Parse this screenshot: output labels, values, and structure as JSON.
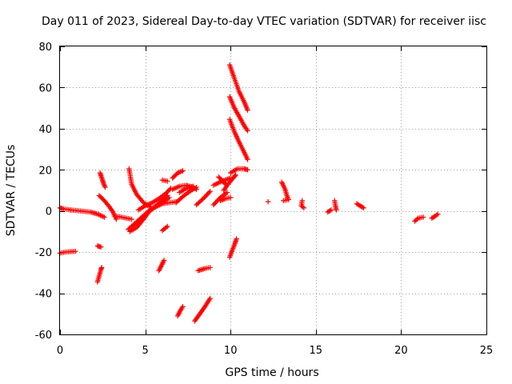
{
  "chart_data": {
    "type": "scatter",
    "title": "Day 011 of 2023, Sidereal Day-to-day VTEC variation (SDTVAR) for receiver iisc",
    "xlabel": "GPS time / hours",
    "ylabel": "SDTVAR / TECUs",
    "xlim": [
      0,
      25
    ],
    "ylim": [
      -60,
      80
    ],
    "xticks": [
      0,
      5,
      10,
      15,
      20,
      25
    ],
    "yticks": [
      -60,
      -40,
      -20,
      0,
      20,
      40,
      60,
      80
    ],
    "grid": true,
    "legend": "none",
    "marker": "plus",
    "color": "#ff0000",
    "tracks": [
      [
        [
          0.0,
          1.5
        ],
        [
          0.2,
          1.0
        ],
        [
          0.4,
          0.8
        ],
        [
          0.6,
          0.5
        ]
      ],
      [
        [
          0.6,
          0.5
        ],
        [
          1.0,
          0.2
        ],
        [
          1.4,
          -0.2
        ],
        [
          1.8,
          -0.5
        ],
        [
          2.2,
          -1.5
        ],
        [
          2.6,
          -3.0
        ]
      ],
      [
        [
          0.0,
          -20.5
        ],
        [
          0.3,
          -20.0
        ],
        [
          0.6,
          -19.8
        ],
        [
          0.9,
          -19.6
        ]
      ],
      [
        [
          2.2,
          -17.0
        ],
        [
          2.4,
          -17.5
        ]
      ],
      [
        [
          2.2,
          -34.5
        ],
        [
          2.3,
          -31.5
        ],
        [
          2.4,
          -28.5
        ],
        [
          2.45,
          -27.5
        ]
      ],
      [
        [
          2.35,
          18.5
        ],
        [
          2.45,
          16.0
        ],
        [
          2.55,
          13.5
        ],
        [
          2.65,
          11.5
        ]
      ],
      [
        [
          2.3,
          7.5
        ],
        [
          2.6,
          5.0
        ],
        [
          2.9,
          2.0
        ],
        [
          3.1,
          -0.5
        ],
        [
          3.3,
          -4.0
        ]
      ],
      [
        [
          3.3,
          -2.5
        ],
        [
          3.6,
          -3.0
        ],
        [
          3.9,
          -3.5
        ],
        [
          4.2,
          -4.0
        ]
      ],
      [
        [
          4.0,
          -9.0
        ],
        [
          4.4,
          -6.0
        ],
        [
          4.8,
          -3.0
        ],
        [
          5.2,
          0.0
        ],
        [
          5.6,
          2.0
        ],
        [
          6.0,
          3.5
        ],
        [
          6.4,
          4.0
        ],
        [
          6.8,
          4.5
        ]
      ],
      [
        [
          4.05,
          20.5
        ],
        [
          4.2,
          13.0
        ],
        [
          4.5,
          8.0
        ],
        [
          4.9,
          4.0
        ],
        [
          5.3,
          2.0
        ]
      ],
      [
        [
          4.1,
          -10.0
        ],
        [
          4.5,
          -8.0
        ],
        [
          4.9,
          -4.0
        ],
        [
          5.3,
          0.5
        ],
        [
          5.7,
          3.0
        ],
        [
          6.0,
          5.0
        ],
        [
          6.3,
          7.5
        ]
      ],
      [
        [
          4.2,
          -7.5
        ],
        [
          4.6,
          -5.0
        ],
        [
          5.0,
          -1.5
        ],
        [
          5.5,
          1.5
        ],
        [
          6.0,
          4.0
        ],
        [
          6.4,
          6.5
        ]
      ],
      [
        [
          4.6,
          0.5
        ],
        [
          5.0,
          2.5
        ],
        [
          5.4,
          4.0
        ],
        [
          5.8,
          6.0
        ],
        [
          6.2,
          8.5
        ],
        [
          6.5,
          11.0
        ]
      ],
      [
        [
          5.8,
          -29.0
        ],
        [
          5.95,
          -26.5
        ],
        [
          6.1,
          -24.0
        ]
      ],
      [
        [
          6.0,
          -9.5
        ],
        [
          6.3,
          -7.5
        ]
      ],
      [
        [
          6.0,
          15.0
        ],
        [
          6.3,
          14.5
        ]
      ],
      [
        [
          6.6,
          16.0
        ],
        [
          6.9,
          18.5
        ],
        [
          7.2,
          19.5
        ]
      ],
      [
        [
          6.6,
          10.5
        ],
        [
          7.0,
          12.0
        ],
        [
          7.4,
          12.5
        ],
        [
          7.8,
          11.5
        ],
        [
          8.0,
          10.5
        ]
      ],
      [
        [
          6.8,
          4.0
        ],
        [
          7.2,
          7.0
        ],
        [
          7.6,
          9.5
        ],
        [
          8.0,
          11.5
        ]
      ],
      [
        [
          7.0,
          9.0
        ],
        [
          7.4,
          11.0
        ],
        [
          7.8,
          12.0
        ]
      ],
      [
        [
          6.9,
          -51.0
        ],
        [
          7.05,
          -48.5
        ],
        [
          7.2,
          -46.5
        ]
      ],
      [
        [
          7.9,
          -53.5
        ],
        [
          8.2,
          -50.0
        ],
        [
          8.5,
          -46.5
        ],
        [
          8.8,
          -42.5
        ]
      ],
      [
        [
          8.1,
          -29.0
        ],
        [
          8.5,
          -28.0
        ],
        [
          8.8,
          -27.5
        ]
      ],
      [
        [
          8.0,
          3.0
        ],
        [
          8.4,
          6.0
        ],
        [
          8.8,
          9.5
        ]
      ],
      [
        [
          9.0,
          3.0
        ],
        [
          9.4,
          6.5
        ],
        [
          9.8,
          9.0
        ]
      ],
      [
        [
          9.0,
          12.5
        ],
        [
          9.5,
          14.5
        ],
        [
          10.0,
          16.0
        ]
      ],
      [
        [
          9.3,
          16.5
        ],
        [
          9.5,
          15.0
        ],
        [
          9.7,
          13.0
        ]
      ],
      [
        [
          9.4,
          5.0
        ],
        [
          9.7,
          6.0
        ],
        [
          10.0,
          6.5
        ]
      ],
      [
        [
          9.6,
          10.0
        ],
        [
          9.85,
          13.0
        ],
        [
          10.1,
          15.5
        ],
        [
          10.3,
          17.5
        ]
      ],
      [
        [
          10.0,
          18.5
        ],
        [
          10.4,
          20.5
        ],
        [
          10.8,
          20.5
        ],
        [
          11.0,
          20.0
        ]
      ],
      [
        [
          9.95,
          71.0
        ],
        [
          10.2,
          65.0
        ],
        [
          10.5,
          58.0
        ],
        [
          10.8,
          53.0
        ],
        [
          11.0,
          49.0
        ]
      ],
      [
        [
          9.95,
          55.5
        ],
        [
          10.2,
          50.5
        ],
        [
          10.5,
          46.0
        ],
        [
          10.8,
          41.5
        ],
        [
          11.0,
          39.0
        ]
      ],
      [
        [
          9.95,
          44.5
        ],
        [
          10.2,
          39.0
        ],
        [
          10.5,
          33.5
        ],
        [
          10.8,
          28.5
        ],
        [
          11.0,
          25.0
        ]
      ],
      [
        [
          9.95,
          -22.5
        ],
        [
          10.1,
          -19.0
        ],
        [
          10.25,
          -16.0
        ],
        [
          10.35,
          -13.5
        ]
      ],
      [
        [
          12.2,
          4.5
        ]
      ],
      [
        [
          13.0,
          14.0
        ],
        [
          13.2,
          10.5
        ],
        [
          13.3,
          7.5
        ],
        [
          13.4,
          5.5
        ],
        [
          13.1,
          5.0
        ]
      ],
      [
        [
          14.2,
          5.0
        ],
        [
          14.15,
          2.5
        ],
        [
          14.3,
          1.5
        ]
      ],
      [
        [
          15.7,
          -0.5
        ],
        [
          15.9,
          0.5
        ]
      ],
      [
        [
          16.1,
          5.0
        ],
        [
          16.15,
          2.5
        ],
        [
          16.2,
          0.5
        ]
      ],
      [
        [
          17.4,
          3.5
        ],
        [
          17.6,
          2.5
        ],
        [
          17.8,
          1.5
        ]
      ],
      [
        [
          20.8,
          -5.0
        ],
        [
          21.0,
          -3.5
        ],
        [
          21.3,
          -3.0
        ]
      ],
      [
        [
          21.8,
          -3.5
        ],
        [
          22.0,
          -2.5
        ],
        [
          22.15,
          -1.5
        ]
      ]
    ]
  }
}
